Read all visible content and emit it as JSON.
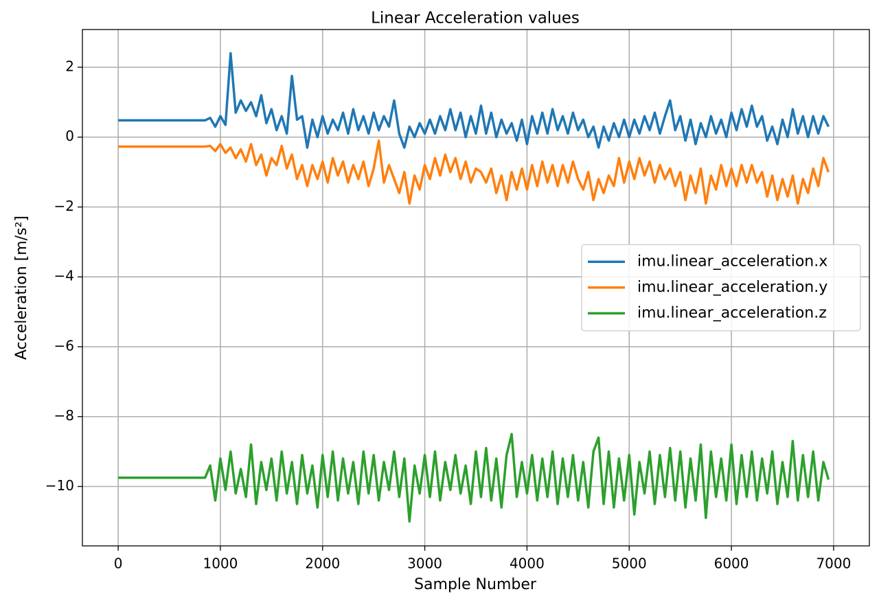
{
  "chart_data": {
    "type": "line",
    "title": "Linear Acceleration values",
    "xlabel": "Sample Number",
    "ylabel": "Acceleration [m/s²]",
    "grid": true,
    "legend": "center right",
    "xlim": [
      -350,
      7350
    ],
    "ylim": [
      -11.7,
      3.08
    ],
    "xticks": [
      0,
      1000,
      2000,
      3000,
      4000,
      5000,
      6000,
      7000
    ],
    "yticks": [
      {
        "value": -10,
        "label": "−10"
      },
      {
        "value": -8,
        "label": "−8"
      },
      {
        "value": -6,
        "label": "−6"
      },
      {
        "value": -4,
        "label": "−4"
      },
      {
        "value": -2,
        "label": "−2"
      },
      0,
      2
    ],
    "x": [
      0,
      50,
      100,
      150,
      200,
      250,
      300,
      350,
      400,
      450,
      500,
      550,
      600,
      650,
      700,
      750,
      800,
      850,
      900,
      950,
      1000,
      1050,
      1100,
      1150,
      1200,
      1250,
      1300,
      1350,
      1400,
      1450,
      1500,
      1550,
      1600,
      1650,
      1700,
      1750,
      1800,
      1850,
      1900,
      1950,
      2000,
      2050,
      2100,
      2150,
      2200,
      2250,
      2300,
      2350,
      2400,
      2450,
      2500,
      2550,
      2600,
      2650,
      2700,
      2750,
      2800,
      2850,
      2900,
      2950,
      3000,
      3050,
      3100,
      3150,
      3200,
      3250,
      3300,
      3350,
      3400,
      3450,
      3500,
      3550,
      3600,
      3650,
      3700,
      3750,
      3800,
      3850,
      3900,
      3950,
      4000,
      4050,
      4100,
      4150,
      4200,
      4250,
      4300,
      4350,
      4400,
      4450,
      4500,
      4550,
      4600,
      4650,
      4700,
      4750,
      4800,
      4850,
      4900,
      4950,
      5000,
      5050,
      5100,
      5150,
      5200,
      5250,
      5300,
      5350,
      5400,
      5450,
      5500,
      5550,
      5600,
      5650,
      5700,
      5750,
      5800,
      5850,
      5900,
      5950,
      6000,
      6050,
      6100,
      6150,
      6200,
      6250,
      6300,
      6350,
      6400,
      6450,
      6500,
      6550,
      6600,
      6650,
      6700,
      6750,
      6800,
      6850,
      6900,
      6950
    ],
    "series": [
      {
        "name": "imu.linear_acceleration.x",
        "color": "#1f77b4",
        "values": [
          0.48,
          0.48,
          0.48,
          0.48,
          0.48,
          0.48,
          0.48,
          0.48,
          0.48,
          0.48,
          0.48,
          0.48,
          0.48,
          0.48,
          0.48,
          0.48,
          0.48,
          0.48,
          0.55,
          0.3,
          0.6,
          0.35,
          2.4,
          0.7,
          1.05,
          0.75,
          1.0,
          0.6,
          1.2,
          0.4,
          0.8,
          0.2,
          0.6,
          0.1,
          1.75,
          0.5,
          0.6,
          -0.3,
          0.5,
          0.0,
          0.6,
          0.1,
          0.5,
          0.2,
          0.7,
          0.1,
          0.8,
          0.2,
          0.6,
          0.1,
          0.7,
          0.2,
          0.6,
          0.3,
          1.05,
          0.1,
          -0.3,
          0.3,
          0.0,
          0.4,
          0.1,
          0.5,
          0.1,
          0.6,
          0.2,
          0.8,
          0.2,
          0.7,
          0.0,
          0.6,
          0.1,
          0.9,
          0.1,
          0.7,
          0.0,
          0.5,
          0.1,
          0.4,
          -0.1,
          0.5,
          -0.2,
          0.6,
          0.1,
          0.7,
          0.1,
          0.8,
          0.2,
          0.6,
          0.1,
          0.7,
          0.2,
          0.5,
          0.0,
          0.3,
          -0.3,
          0.3,
          -0.1,
          0.4,
          0.0,
          0.5,
          0.0,
          0.5,
          0.1,
          0.6,
          0.2,
          0.7,
          0.1,
          0.6,
          1.05,
          0.2,
          0.6,
          -0.1,
          0.5,
          -0.2,
          0.4,
          0.0,
          0.6,
          0.1,
          0.5,
          0.0,
          0.7,
          0.2,
          0.8,
          0.3,
          0.9,
          0.3,
          0.6,
          -0.1,
          0.3,
          -0.2,
          0.5,
          0.0,
          0.8,
          0.1,
          0.6,
          0.0,
          0.6,
          0.1,
          0.6,
          0.3
        ]
      },
      {
        "name": "imu.linear_acceleration.y",
        "color": "#ff7f0e",
        "values": [
          -0.27,
          -0.27,
          -0.27,
          -0.27,
          -0.27,
          -0.27,
          -0.27,
          -0.27,
          -0.27,
          -0.27,
          -0.27,
          -0.27,
          -0.27,
          -0.27,
          -0.27,
          -0.27,
          -0.27,
          -0.27,
          -0.25,
          -0.4,
          -0.2,
          -0.45,
          -0.3,
          -0.6,
          -0.35,
          -0.7,
          -0.2,
          -0.8,
          -0.5,
          -1.1,
          -0.6,
          -0.8,
          -0.25,
          -0.9,
          -0.5,
          -1.2,
          -0.8,
          -1.4,
          -0.8,
          -1.2,
          -0.7,
          -1.3,
          -0.6,
          -1.1,
          -0.7,
          -1.3,
          -0.8,
          -1.2,
          -0.7,
          -1.4,
          -0.9,
          -0.1,
          -1.3,
          -0.8,
          -1.2,
          -1.6,
          -1.0,
          -1.9,
          -1.1,
          -1.5,
          -0.8,
          -1.2,
          -0.6,
          -1.1,
          -0.5,
          -1.0,
          -0.6,
          -1.2,
          -0.7,
          -1.3,
          -0.9,
          -1.0,
          -1.3,
          -0.9,
          -1.6,
          -1.1,
          -1.8,
          -1.0,
          -1.5,
          -0.9,
          -1.5,
          -0.8,
          -1.4,
          -0.7,
          -1.3,
          -0.8,
          -1.4,
          -0.8,
          -1.3,
          -0.7,
          -1.2,
          -1.5,
          -1.0,
          -1.8,
          -1.2,
          -1.6,
          -1.1,
          -1.4,
          -0.6,
          -1.3,
          -0.7,
          -1.2,
          -0.6,
          -1.1,
          -0.7,
          -1.3,
          -0.8,
          -1.2,
          -0.9,
          -1.4,
          -1.0,
          -1.8,
          -1.1,
          -1.6,
          -0.9,
          -1.9,
          -1.1,
          -1.5,
          -0.8,
          -1.4,
          -0.9,
          -1.4,
          -0.8,
          -1.3,
          -0.8,
          -1.3,
          -1.0,
          -1.7,
          -1.1,
          -1.8,
          -1.2,
          -1.7,
          -1.1,
          -1.9,
          -1.2,
          -1.6,
          -0.9,
          -1.4,
          -0.6,
          -1.0
        ]
      },
      {
        "name": "imu.linear_acceleration.z",
        "color": "#2ca02c",
        "values": [
          -9.75,
          -9.75,
          -9.75,
          -9.75,
          -9.75,
          -9.75,
          -9.75,
          -9.75,
          -9.75,
          -9.75,
          -9.75,
          -9.75,
          -9.75,
          -9.75,
          -9.75,
          -9.75,
          -9.75,
          -9.75,
          -9.4,
          -10.4,
          -9.2,
          -10.1,
          -9.0,
          -10.2,
          -9.5,
          -10.3,
          -8.8,
          -10.5,
          -9.3,
          -10.1,
          -9.2,
          -10.4,
          -9.0,
          -10.2,
          -9.3,
          -10.5,
          -9.1,
          -10.2,
          -9.4,
          -10.6,
          -9.1,
          -10.3,
          -9.0,
          -10.4,
          -9.2,
          -10.2,
          -9.3,
          -10.5,
          -9.0,
          -10.2,
          -9.1,
          -10.4,
          -9.3,
          -10.1,
          -9.0,
          -10.3,
          -9.2,
          -11.0,
          -9.4,
          -10.2,
          -9.1,
          -10.3,
          -9.0,
          -10.4,
          -9.3,
          -10.1,
          -9.1,
          -10.2,
          -9.4,
          -10.5,
          -9.0,
          -10.3,
          -8.9,
          -10.4,
          -9.2,
          -10.6,
          -9.1,
          -8.5,
          -10.3,
          -9.3,
          -10.2,
          -9.1,
          -10.4,
          -9.2,
          -10.3,
          -9.0,
          -10.5,
          -9.2,
          -10.3,
          -9.1,
          -10.4,
          -9.3,
          -10.6,
          -9.0,
          -8.6,
          -10.5,
          -9.0,
          -10.6,
          -9.2,
          -10.4,
          -9.1,
          -10.8,
          -9.3,
          -10.2,
          -9.0,
          -10.5,
          -9.1,
          -10.3,
          -8.9,
          -10.4,
          -9.0,
          -10.6,
          -9.2,
          -10.4,
          -8.8,
          -10.9,
          -9.0,
          -10.3,
          -9.2,
          -10.4,
          -8.8,
          -10.5,
          -9.1,
          -10.3,
          -9.0,
          -10.4,
          -9.2,
          -10.2,
          -9.0,
          -10.5,
          -9.3,
          -10.3,
          -8.7,
          -10.4,
          -9.1,
          -10.3,
          -9.0,
          -10.4,
          -9.3,
          -9.8
        ]
      }
    ]
  }
}
